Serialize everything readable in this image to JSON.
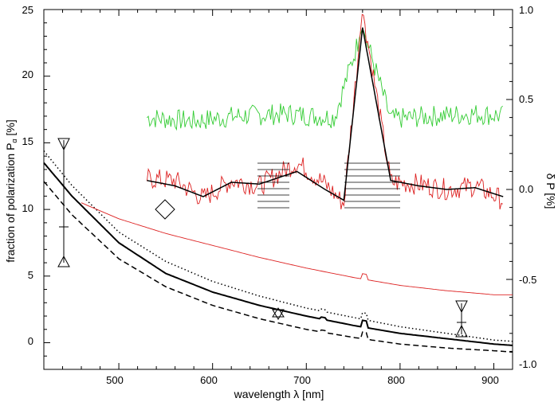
{
  "chart_data": {
    "type": "line",
    "xlabel": "wavelength λ [nm]",
    "ylabel_left": "fraction of polarization P",
    "ylabel_left_subscript": "α",
    "ylabel_left_suffix": " [%]",
    "ylabel_right": "δ P [%]",
    "xlim": [
      420,
      920
    ],
    "ylim_left": [
      -2,
      25
    ],
    "ylim_right": [
      -1.0,
      1.0
    ],
    "x_ticks": [
      "500",
      "600",
      "700",
      "800",
      "900"
    ],
    "y_left_ticks": [
      "0",
      "5",
      "10",
      "15",
      "20",
      "25"
    ],
    "y_right_ticks": [
      "-1.0",
      "-0.5",
      "0.0",
      "0.5",
      "1.0"
    ],
    "grid": false,
    "colors": {
      "axes": "#000000",
      "green": "#33cc33",
      "red": "#dd2222",
      "black": "#000000"
    },
    "series": [
      {
        "style": "dotted",
        "axis": "left",
        "color": "#000000",
        "x": [
          420,
          450,
          500,
          550,
          600,
          650,
          700,
          750,
          800,
          850,
          900,
          920
        ],
        "y": [
          14.4,
          11.8,
          8.3,
          6.1,
          4.6,
          3.5,
          2.6,
          1.9,
          1.2,
          0.7,
          0.2,
          0.1
        ]
      },
      {
        "style": "solid",
        "axis": "left",
        "color": "#000000",
        "x": [
          420,
          450,
          500,
          550,
          600,
          650,
          700,
          750,
          800,
          850,
          900,
          920
        ],
        "y": [
          13.5,
          11.0,
          7.5,
          5.2,
          3.8,
          2.8,
          2.0,
          1.3,
          0.7,
          0.3,
          -0.1,
          -0.2
        ]
      },
      {
        "style": "dashed",
        "axis": "left",
        "color": "#000000",
        "x": [
          420,
          450,
          500,
          550,
          600,
          650,
          700,
          750,
          800,
          850,
          900,
          920
        ],
        "y": [
          12.1,
          9.6,
          6.3,
          4.2,
          2.8,
          1.8,
          1.0,
          0.4,
          -0.1,
          -0.4,
          -0.6,
          -0.7
        ]
      },
      {
        "style": "thin",
        "axis": "left",
        "color": "#dd2222",
        "x": [
          460,
          500,
          550,
          600,
          650,
          700,
          750,
          800,
          850,
          900,
          920
        ],
        "y": [
          10.5,
          9.3,
          8.2,
          7.3,
          6.4,
          5.6,
          4.9,
          4.3,
          3.9,
          3.6,
          3.6
        ]
      },
      {
        "style": "noisy",
        "axis": "right",
        "color": "#33cc33",
        "x": [
          530,
          580,
          630,
          680,
          730,
          760,
          790,
          840,
          880,
          910
        ],
        "y": [
          0.4,
          0.38,
          0.41,
          0.42,
          0.4,
          0.9,
          0.39,
          0.41,
          0.42,
          0.41
        ]
      },
      {
        "style": "noisy",
        "axis": "right",
        "color": "#dd2222",
        "x": [
          530,
          560,
          590,
          620,
          650,
          690,
          720,
          740,
          760,
          790,
          820,
          850,
          880,
          910
        ],
        "y": [
          0.06,
          0.05,
          -0.05,
          0.05,
          0.02,
          0.15,
          0.03,
          -0.08,
          1.0,
          0.04,
          0.03,
          0.0,
          0.02,
          -0.06
        ]
      },
      {
        "style": "solid",
        "axis": "right",
        "color": "#000000",
        "x": [
          530,
          560,
          590,
          620,
          650,
          690,
          720,
          740,
          760,
          790,
          820,
          850,
          880,
          910
        ],
        "y": [
          0.05,
          0.02,
          -0.04,
          0.04,
          0.03,
          0.1,
          0.0,
          -0.06,
          0.9,
          0.05,
          0.02,
          0.0,
          0.01,
          -0.04
        ]
      }
    ]
  }
}
